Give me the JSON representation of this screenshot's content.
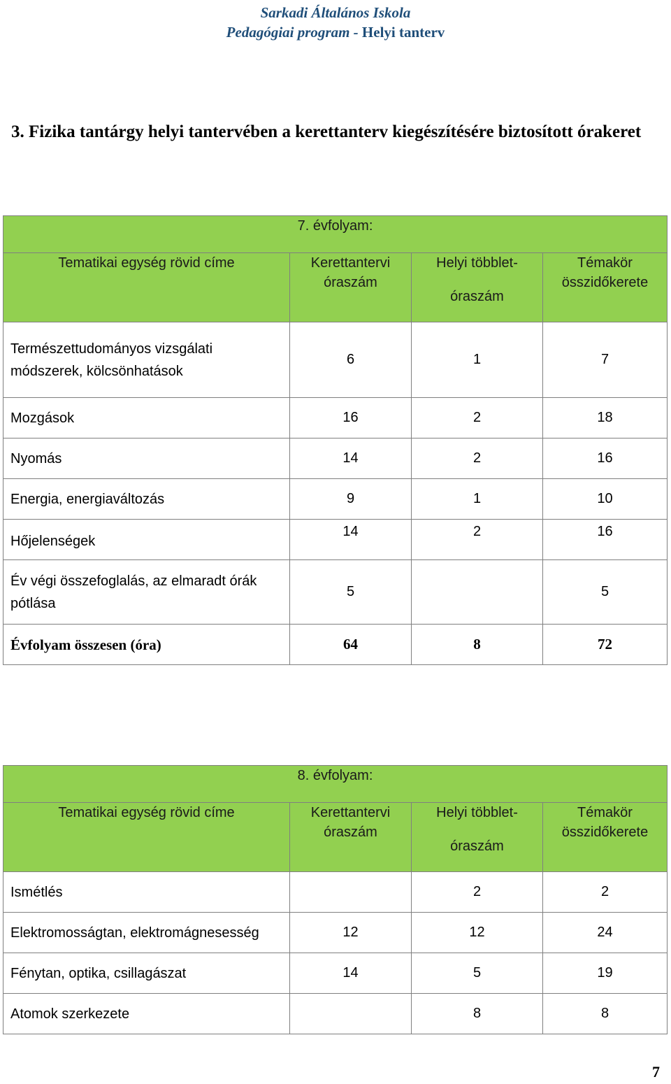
{
  "header": {
    "school": "Sarkadi Általános Iskola",
    "program_prefix": "Pedagógiai program - ",
    "program_suffix": "Helyi tanterv"
  },
  "section": {
    "title": "3. Fizika tantárgy helyi tantervében a kerettanterv kiegészítésére biztosított órakeret"
  },
  "columns": {
    "c1": "Tematikai egység rövid címe",
    "c2_line1": "Kerettantervi",
    "c2_line2": "óraszám",
    "c3_line1": "Helyi többlet-",
    "c3_line2": "óraszám",
    "c4_line1": "Témakör",
    "c4_line2": "összidőkerete"
  },
  "grade7": {
    "label": "7. évfolyam:",
    "rows": [
      {
        "name": "Természettudományos vizsgálati módszerek, kölcsönhatások",
        "k": "6",
        "h": "1",
        "t": "7"
      },
      {
        "name": "Mozgások",
        "k": "16",
        "h": "2",
        "t": "18"
      },
      {
        "name": "Nyomás",
        "k": "14",
        "h": "2",
        "t": "16"
      },
      {
        "name": "Energia, energiaváltozás",
        "k": "9",
        "h": "1",
        "t": "10"
      },
      {
        "name": "Hőjelenségek",
        "k": "14",
        "h": "2",
        "t": "16"
      },
      {
        "name": "Év végi összefoglalás, az elmaradt órák pótlása",
        "k": "5",
        "h": "",
        "t": "5"
      }
    ],
    "total": {
      "name": "Évfolyam összesen (óra)",
      "k": "64",
      "h": "8",
      "t": "72"
    }
  },
  "grade8": {
    "label": "8. évfolyam:",
    "rows": [
      {
        "name": "Ismétlés",
        "k": "",
        "h": "2",
        "t": "2"
      },
      {
        "name": "Elektromosságtan, elektromágnesesség",
        "k": "12",
        "h": "12",
        "t": "24"
      },
      {
        "name": "Fénytan, optika, csillagászat",
        "k": "14",
        "h": "5",
        "t": "19"
      },
      {
        "name": "Atomok szerkezete",
        "k": "",
        "h": "8",
        "t": "8"
      }
    ]
  },
  "page_number": "7"
}
